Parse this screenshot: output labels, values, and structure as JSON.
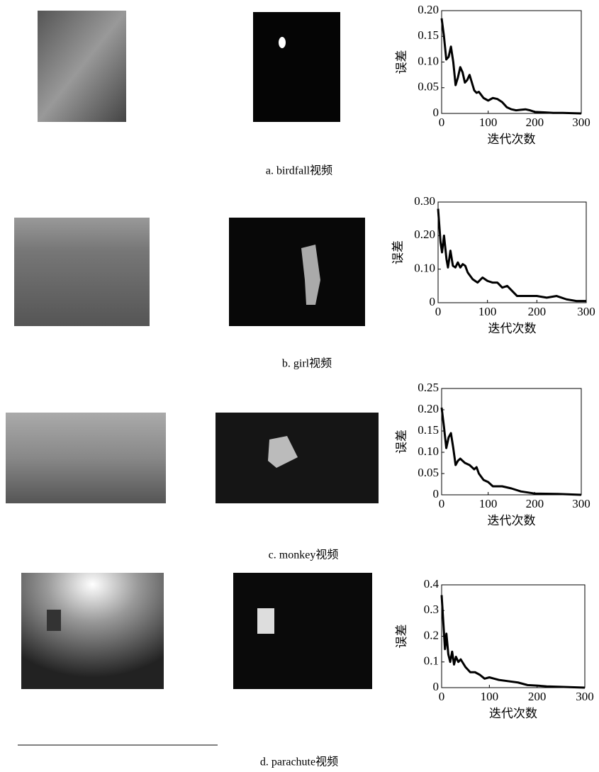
{
  "chart_data": [
    {
      "type": "line",
      "x_label": "迭代次数",
      "y_label": "误差",
      "xlim": [
        0,
        300
      ],
      "xticks": [
        0,
        100,
        200,
        300
      ],
      "ylim": [
        0,
        0.2
      ],
      "yticks": [
        0,
        0.05,
        {
          "value": 0.1,
          "label": "0.10"
        },
        0.15,
        {
          "value": 0.2,
          "label": "0.20"
        }
      ],
      "x": [
        0,
        5,
        10,
        15,
        20,
        25,
        30,
        35,
        40,
        45,
        50,
        55,
        60,
        65,
        70,
        75,
        80,
        90,
        100,
        110,
        120,
        130,
        140,
        150,
        160,
        170,
        180,
        190,
        200,
        220,
        240,
        260,
        280,
        300
      ],
      "series": [
        {
          "color": "#000000",
          "values": [
            0.185,
            0.15,
            0.105,
            0.11,
            0.13,
            0.1,
            0.055,
            0.07,
            0.09,
            0.08,
            0.06,
            0.065,
            0.075,
            0.06,
            0.045,
            0.04,
            0.042,
            0.03,
            0.025,
            0.03,
            0.028,
            0.022,
            0.012,
            0.008,
            0.006,
            0.007,
            0.008,
            0.006,
            0.003,
            0.002,
            0.001,
            0.001,
            0.0005,
            0
          ]
        }
      ]
    },
    {
      "type": "line",
      "x_label": "迭代次数",
      "y_label": "误差",
      "xlim": [
        0,
        300
      ],
      "xticks": [
        0,
        100,
        200,
        300
      ],
      "ylim": [
        0,
        0.3
      ],
      "yticks": [
        0,
        {
          "value": 0.1,
          "label": "0.10"
        },
        {
          "value": 0.2,
          "label": "0.20"
        },
        {
          "value": 0.3,
          "label": "0.30"
        }
      ],
      "x": [
        0,
        5,
        8,
        12,
        17,
        20,
        25,
        30,
        35,
        40,
        45,
        50,
        55,
        60,
        70,
        80,
        90,
        100,
        110,
        120,
        130,
        140,
        150,
        160,
        180,
        200,
        220,
        240,
        260,
        280,
        300
      ],
      "series": [
        {
          "color": "#000000",
          "values": [
            0.28,
            0.18,
            0.15,
            0.2,
            0.13,
            0.105,
            0.155,
            0.11,
            0.105,
            0.12,
            0.105,
            0.115,
            0.11,
            0.09,
            0.07,
            0.06,
            0.075,
            0.065,
            0.06,
            0.06,
            0.045,
            0.05,
            0.035,
            0.02,
            0.02,
            0.02,
            0.015,
            0.02,
            0.01,
            0.005,
            0.005
          ]
        }
      ]
    },
    {
      "type": "line",
      "x_label": "迭代次数",
      "y_label": "误差",
      "xlim": [
        0,
        300
      ],
      "xticks": [
        0,
        100,
        200,
        300
      ],
      "ylim": [
        0,
        0.25
      ],
      "yticks": [
        0,
        0.05,
        {
          "value": 0.1,
          "label": "0.10"
        },
        0.15,
        {
          "value": 0.2,
          "label": "0.20"
        },
        0.25
      ],
      "x": [
        0,
        5,
        10,
        15,
        20,
        25,
        30,
        35,
        40,
        50,
        60,
        70,
        75,
        80,
        90,
        100,
        110,
        130,
        150,
        170,
        200,
        250,
        300
      ],
      "series": [
        {
          "color": "#000000",
          "values": [
            0.205,
            0.16,
            0.11,
            0.135,
            0.145,
            0.11,
            0.07,
            0.08,
            0.085,
            0.075,
            0.07,
            0.06,
            0.065,
            0.05,
            0.035,
            0.03,
            0.02,
            0.02,
            0.015,
            0.008,
            0.003,
            0.002,
            0
          ]
        }
      ]
    },
    {
      "type": "line",
      "x_label": "迭代次数",
      "y_label": "误差",
      "xlim": [
        0,
        300
      ],
      "xticks": [
        0,
        100,
        200,
        300
      ],
      "ylim": [
        0,
        0.4
      ],
      "yticks": [
        0,
        0.1,
        0.2,
        0.3,
        0.4
      ],
      "x": [
        0,
        4,
        7,
        10,
        14,
        18,
        22,
        26,
        30,
        35,
        40,
        50,
        60,
        70,
        80,
        90,
        100,
        110,
        120,
        140,
        160,
        180,
        200,
        220,
        250,
        300
      ],
      "series": [
        {
          "color": "#000000",
          "values": [
            0.36,
            0.24,
            0.15,
            0.21,
            0.13,
            0.1,
            0.14,
            0.09,
            0.12,
            0.1,
            0.11,
            0.08,
            0.06,
            0.06,
            0.05,
            0.035,
            0.04,
            0.035,
            0.03,
            0.025,
            0.02,
            0.01,
            0.008,
            0.005,
            0.003,
            0
          ]
        }
      ]
    }
  ],
  "captions": [
    "a. birdfall视频",
    "b. girl视频",
    "c. monkey视频",
    "d. parachute视频"
  ]
}
